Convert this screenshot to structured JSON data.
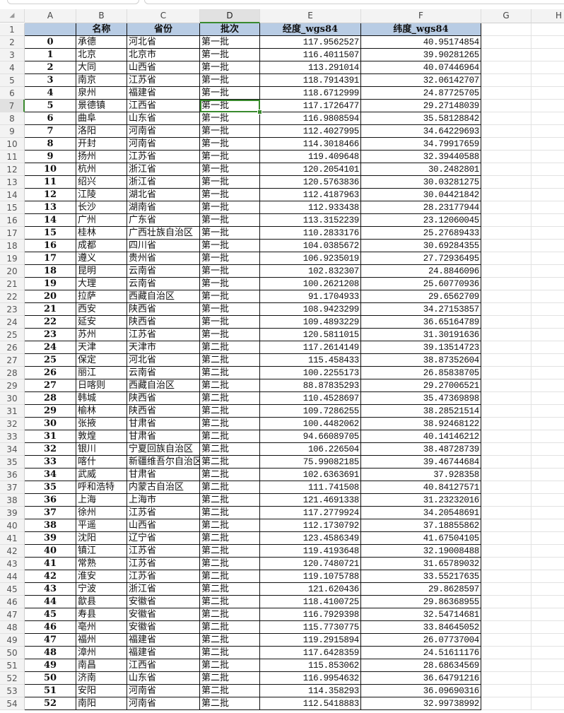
{
  "sheet": {
    "column_letters": [
      "A",
      "B",
      "C",
      "D",
      "E",
      "F",
      "G",
      "H"
    ],
    "selected_cell": "D8",
    "accent_color": "#3a8a2e",
    "header_fill": "#b8cce4",
    "headers": [
      "",
      "名称",
      "省份",
      "批次",
      "经度_wgs84",
      "纬度_wgs84"
    ],
    "rows": [
      [
        "0",
        "承德",
        "河北省",
        "第一批",
        "117.9562527",
        "40.95174854"
      ],
      [
        "1",
        "北京",
        "北京市",
        "第一批",
        "116.4011507",
        "39.90281265"
      ],
      [
        "2",
        "大同",
        "山西省",
        "第一批",
        "113.291014",
        "40.07446964"
      ],
      [
        "3",
        "南京",
        "江苏省",
        "第一批",
        "118.7914391",
        "32.06142707"
      ],
      [
        "4",
        "泉州",
        "福建省",
        "第一批",
        "118.6712999",
        "24.87725705"
      ],
      [
        "5",
        "景德镇",
        "江西省",
        "第一批",
        "117.1726477",
        "29.27148039"
      ],
      [
        "6",
        "曲阜",
        "山东省",
        "第一批",
        "116.9808594",
        "35.58128842"
      ],
      [
        "7",
        "洛阳",
        "河南省",
        "第一批",
        "112.4027995",
        "34.64229693"
      ],
      [
        "8",
        "开封",
        "河南省",
        "第一批",
        "114.3018466",
        "34.79917659"
      ],
      [
        "9",
        "扬州",
        "江苏省",
        "第一批",
        "119.409648",
        "32.39440588"
      ],
      [
        "10",
        "杭州",
        "浙江省",
        "第一批",
        "120.2054101",
        "30.2482801"
      ],
      [
        "11",
        "绍兴",
        "浙江省",
        "第一批",
        "120.5763836",
        "30.03281275"
      ],
      [
        "12",
        "江陵",
        "湖北省",
        "第一批",
        "112.4187963",
        "30.04421842"
      ],
      [
        "13",
        "长沙",
        "湖南省",
        "第一批",
        "112.933438",
        "28.23177944"
      ],
      [
        "14",
        "广州",
        "广东省",
        "第一批",
        "113.3152239",
        "23.12060045"
      ],
      [
        "15",
        "桂林",
        "广西壮族自治区",
        "第一批",
        "110.2833176",
        "25.27689433"
      ],
      [
        "16",
        "成都",
        "四川省",
        "第一批",
        "104.0385672",
        "30.69284355"
      ],
      [
        "17",
        "遵义",
        "贵州省",
        "第一批",
        "106.9235019",
        "27.72936495"
      ],
      [
        "18",
        "昆明",
        "云南省",
        "第一批",
        "102.832307",
        "24.8846096"
      ],
      [
        "19",
        "大理",
        "云南省",
        "第一批",
        "100.2621208",
        "25.60770936"
      ],
      [
        "20",
        "拉萨",
        "西藏自治区",
        "第一批",
        "91.1704933",
        "29.6562709"
      ],
      [
        "21",
        "西安",
        "陕西省",
        "第一批",
        "108.9423299",
        "34.27153857"
      ],
      [
        "22",
        "延安",
        "陕西省",
        "第一批",
        "109.4893229",
        "36.65164789"
      ],
      [
        "23",
        "苏州",
        "江苏省",
        "第一批",
        "120.5811015",
        "31.30191636"
      ],
      [
        "24",
        "天津",
        "天津市",
        "第二批",
        "117.2614149",
        "39.13514723"
      ],
      [
        "25",
        "保定",
        "河北省",
        "第二批",
        "115.458433",
        "38.87352604"
      ],
      [
        "26",
        "丽江",
        "云南省",
        "第二批",
        "100.2255173",
        "26.85838705"
      ],
      [
        "27",
        "日喀则",
        "西藏自治区",
        "第二批",
        "88.87835293",
        "29.27006521"
      ],
      [
        "28",
        "韩城",
        "陕西省",
        "第二批",
        "110.4528697",
        "35.47369898"
      ],
      [
        "29",
        "榆林",
        "陕西省",
        "第二批",
        "109.7286255",
        "38.28521514"
      ],
      [
        "30",
        "张掖",
        "甘肃省",
        "第二批",
        "100.4482062",
        "38.92468122"
      ],
      [
        "31",
        "敦煌",
        "甘肃省",
        "第二批",
        "94.66089705",
        "40.14146212"
      ],
      [
        "32",
        "银川",
        "宁夏回族自治区",
        "第二批",
        "106.226504",
        "38.48728739"
      ],
      [
        "33",
        "喀什",
        "新疆维吾尔自治区",
        "第二批",
        "75.99082185",
        "39.46744684"
      ],
      [
        "34",
        "武威",
        "甘肃省",
        "第二批",
        "102.6363691",
        "37.928358"
      ],
      [
        "35",
        "呼和浩特",
        "内蒙古自治区",
        "第二批",
        "111.741508",
        "40.84127571"
      ],
      [
        "36",
        "上海",
        "上海市",
        "第二批",
        "121.4691338",
        "31.23232016"
      ],
      [
        "37",
        "徐州",
        "江苏省",
        "第二批",
        "117.2779924",
        "34.20548691"
      ],
      [
        "38",
        "平遥",
        "山西省",
        "第二批",
        "112.1730792",
        "37.18855862"
      ],
      [
        "39",
        "沈阳",
        "辽宁省",
        "第二批",
        "123.4586349",
        "41.67504105"
      ],
      [
        "40",
        "镇江",
        "江苏省",
        "第二批",
        "119.4193648",
        "32.19008488"
      ],
      [
        "41",
        "常熟",
        "江苏省",
        "第二批",
        "120.7480721",
        "31.65789032"
      ],
      [
        "42",
        "淮安",
        "江苏省",
        "第二批",
        "119.1075788",
        "33.55217635"
      ],
      [
        "43",
        "宁波",
        "浙江省",
        "第二批",
        "121.620436",
        "29.8628597"
      ],
      [
        "44",
        "歙县",
        "安徽省",
        "第二批",
        "118.4100725",
        "29.86368955"
      ],
      [
        "45",
        "寿县",
        "安徽省",
        "第二批",
        "116.7929398",
        "32.54714681"
      ],
      [
        "46",
        "亳州",
        "安徽省",
        "第二批",
        "115.7730775",
        "33.84645052"
      ],
      [
        "47",
        "福州",
        "福建省",
        "第二批",
        "119.2915894",
        "26.07737004"
      ],
      [
        "48",
        "漳州",
        "福建省",
        "第二批",
        "117.6428359",
        "24.51611176"
      ],
      [
        "49",
        "南昌",
        "江西省",
        "第二批",
        "115.853062",
        "28.68634569"
      ],
      [
        "50",
        "济南",
        "山东省",
        "第二批",
        "116.9954632",
        "36.64791216"
      ],
      [
        "51",
        "安阳",
        "河南省",
        "第二批",
        "114.358293",
        "36.09690316"
      ],
      [
        "52",
        "南阳",
        "河南省",
        "第二批",
        "112.5418883",
        "32.99738992"
      ]
    ]
  }
}
